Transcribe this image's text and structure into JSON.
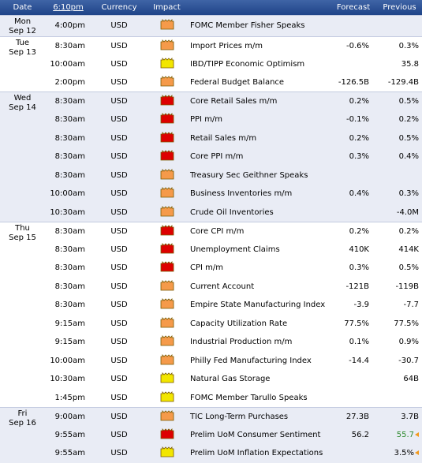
{
  "header": {
    "date": "Date",
    "time": "6:10pm",
    "currency": "Currency",
    "impact": "Impact",
    "event": "",
    "forecast": "Forecast",
    "previous": "Previous"
  },
  "colors": {
    "high": "#dd0000",
    "medium": "#f59a4a",
    "low": "#f2e600"
  },
  "days": [
    {
      "day": "Mon",
      "date": "Sep 12",
      "events": [
        {
          "time": "4:00pm",
          "currency": "USD",
          "impact": "medium",
          "impact_icon": "medium-impact-folder-icon",
          "title": "FOMC Member Fisher Speaks",
          "forecast": "",
          "previous": ""
        }
      ]
    },
    {
      "day": "Tue",
      "date": "Sep 13",
      "events": [
        {
          "time": "8:30am",
          "currency": "USD",
          "impact": "medium",
          "impact_icon": "medium-impact-folder-icon",
          "title": "Import Prices m/m",
          "forecast": "-0.6%",
          "previous": "0.3%"
        },
        {
          "time": "10:00am",
          "currency": "USD",
          "impact": "low",
          "impact_icon": "low-impact-folder-icon",
          "title": "IBD/TIPP Economic Optimism",
          "forecast": "",
          "previous": "35.8"
        },
        {
          "time": "2:00pm",
          "currency": "USD",
          "impact": "medium",
          "impact_icon": "medium-impact-folder-icon",
          "title": "Federal Budget Balance",
          "forecast": "-126.5B",
          "previous": "-129.4B"
        }
      ]
    },
    {
      "day": "Wed",
      "date": "Sep 14",
      "events": [
        {
          "time": "8:30am",
          "currency": "USD",
          "impact": "high",
          "impact_icon": "high-impact-folder-icon",
          "title": "Core Retail Sales m/m",
          "forecast": "0.2%",
          "previous": "0.5%"
        },
        {
          "time": "8:30am",
          "currency": "USD",
          "impact": "high",
          "impact_icon": "high-impact-folder-icon",
          "title": "PPI m/m",
          "forecast": "-0.1%",
          "previous": "0.2%"
        },
        {
          "time": "8:30am",
          "currency": "USD",
          "impact": "high",
          "impact_icon": "high-impact-folder-icon",
          "title": "Retail Sales m/m",
          "forecast": "0.2%",
          "previous": "0.5%"
        },
        {
          "time": "8:30am",
          "currency": "USD",
          "impact": "high",
          "impact_icon": "high-impact-folder-icon",
          "title": "Core PPI m/m",
          "forecast": "0.3%",
          "previous": "0.4%"
        },
        {
          "time": "8:30am",
          "currency": "USD",
          "impact": "medium",
          "impact_icon": "medium-impact-folder-icon",
          "title": "Treasury Sec Geithner Speaks",
          "forecast": "",
          "previous": ""
        },
        {
          "time": "10:00am",
          "currency": "USD",
          "impact": "medium",
          "impact_icon": "medium-impact-folder-icon",
          "title": "Business Inventories m/m",
          "forecast": "0.4%",
          "previous": "0.3%"
        },
        {
          "time": "10:30am",
          "currency": "USD",
          "impact": "medium",
          "impact_icon": "medium-impact-folder-icon",
          "title": "Crude Oil Inventories",
          "forecast": "",
          "previous": "-4.0M"
        }
      ]
    },
    {
      "day": "Thu",
      "date": "Sep 15",
      "events": [
        {
          "time": "8:30am",
          "currency": "USD",
          "impact": "high",
          "impact_icon": "high-impact-folder-icon",
          "title": "Core CPI m/m",
          "forecast": "0.2%",
          "previous": "0.2%"
        },
        {
          "time": "8:30am",
          "currency": "USD",
          "impact": "high",
          "impact_icon": "high-impact-folder-icon",
          "title": "Unemployment Claims",
          "forecast": "410K",
          "previous": "414K"
        },
        {
          "time": "8:30am",
          "currency": "USD",
          "impact": "high",
          "impact_icon": "high-impact-folder-icon",
          "title": "CPI m/m",
          "forecast": "0.3%",
          "previous": "0.5%"
        },
        {
          "time": "8:30am",
          "currency": "USD",
          "impact": "medium",
          "impact_icon": "medium-impact-folder-icon",
          "title": "Current Account",
          "forecast": "-121B",
          "previous": "-119B"
        },
        {
          "time": "8:30am",
          "currency": "USD",
          "impact": "medium",
          "impact_icon": "medium-impact-folder-icon",
          "title": "Empire State Manufacturing Index",
          "forecast": "-3.9",
          "previous": "-7.7"
        },
        {
          "time": "9:15am",
          "currency": "USD",
          "impact": "medium",
          "impact_icon": "medium-impact-folder-icon",
          "title": "Capacity Utilization Rate",
          "forecast": "77.5%",
          "previous": "77.5%"
        },
        {
          "time": "9:15am",
          "currency": "USD",
          "impact": "medium",
          "impact_icon": "medium-impact-folder-icon",
          "title": "Industrial Production m/m",
          "forecast": "0.1%",
          "previous": "0.9%"
        },
        {
          "time": "10:00am",
          "currency": "USD",
          "impact": "medium",
          "impact_icon": "medium-impact-folder-icon",
          "title": "Philly Fed Manufacturing Index",
          "forecast": "-14.4",
          "previous": "-30.7"
        },
        {
          "time": "10:30am",
          "currency": "USD",
          "impact": "low",
          "impact_icon": "low-impact-folder-icon",
          "title": "Natural Gas Storage",
          "forecast": "",
          "previous": "64B"
        },
        {
          "time": "1:45pm",
          "currency": "USD",
          "impact": "low",
          "impact_icon": "low-impact-folder-icon",
          "title": "FOMC Member Tarullo Speaks",
          "forecast": "",
          "previous": ""
        }
      ]
    },
    {
      "day": "Fri",
      "date": "Sep 16",
      "events": [
        {
          "time": "9:00am",
          "currency": "USD",
          "impact": "medium",
          "impact_icon": "medium-impact-folder-icon",
          "title": "TIC Long-Term Purchases",
          "forecast": "27.3B",
          "previous": "3.7B"
        },
        {
          "time": "9:55am",
          "currency": "USD",
          "impact": "high",
          "impact_icon": "high-impact-folder-icon",
          "title": "Prelim UoM Consumer Sentiment",
          "forecast": "56.2",
          "previous": "55.7",
          "previous_revised": "better",
          "revision_icon": "revision-arrow-icon"
        },
        {
          "time": "9:55am",
          "currency": "USD",
          "impact": "low",
          "impact_icon": "low-impact-folder-icon",
          "title": "Prelim UoM Inflation Expectations",
          "forecast": "",
          "previous": "3.5%",
          "previous_revised": "neutral",
          "revision_icon": "revision-arrow-icon"
        }
      ]
    }
  ]
}
